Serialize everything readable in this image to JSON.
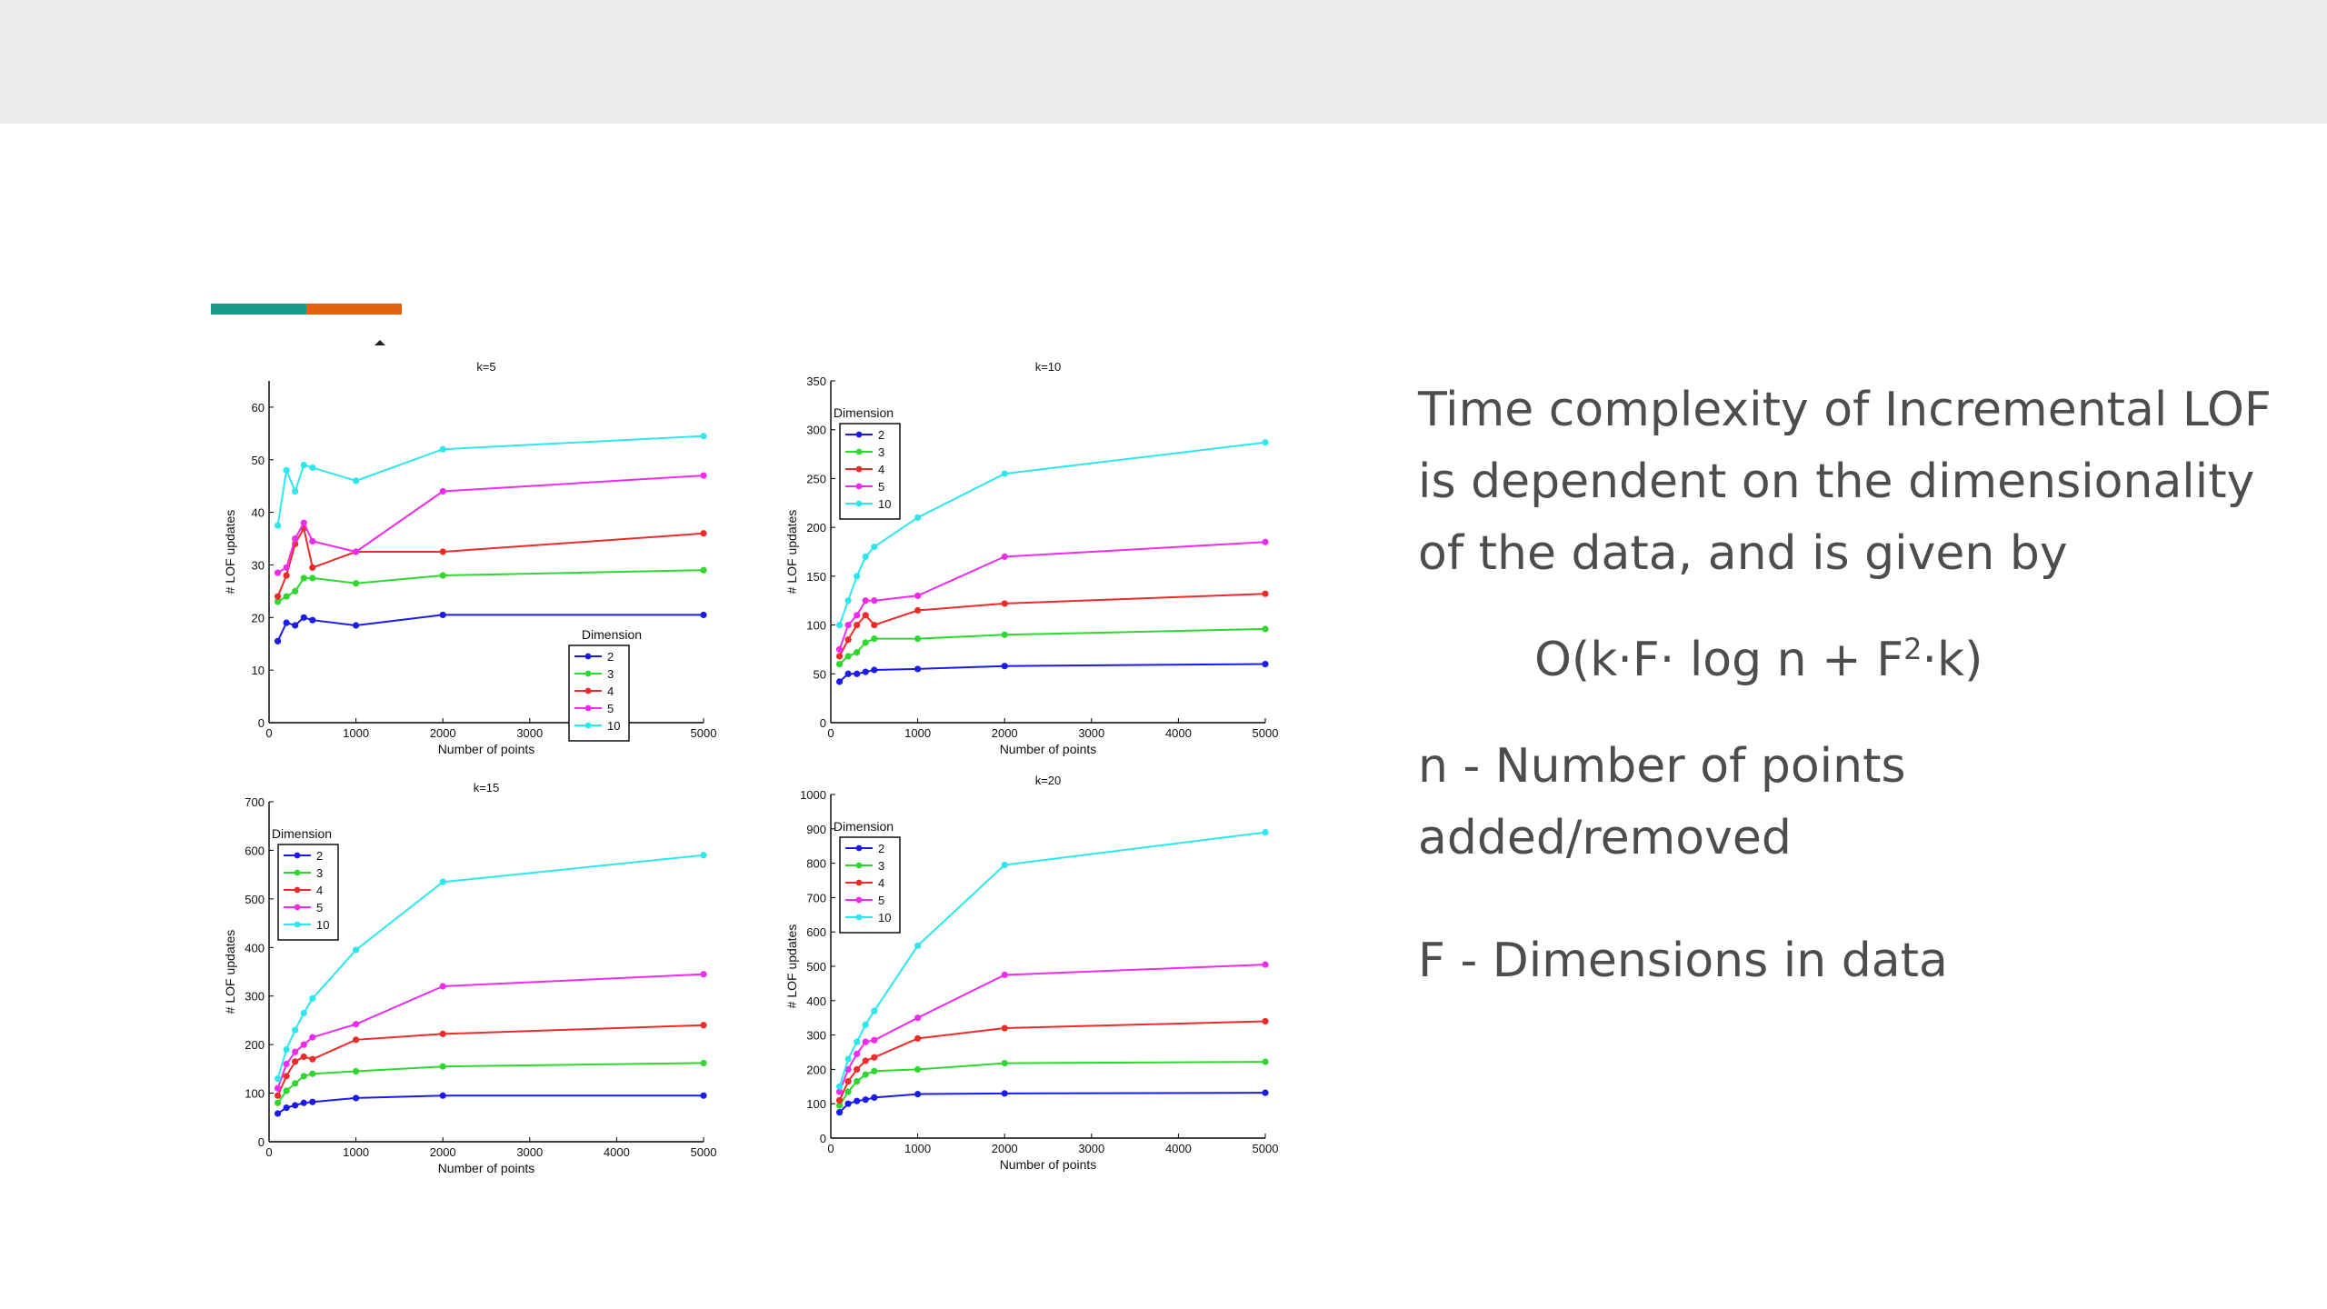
{
  "slide": {
    "accent_colors": [
      "#1a9a8a",
      "#e2600f"
    ],
    "text": {
      "paragraph": "Time complexity of Incremental LOF is dependent on the dimensionality of the data, and is given by",
      "formula_main": "O(k·F· log n + F",
      "formula_sup": "2",
      "formula_tail": "·k)",
      "def_n": "n - Number of points added/removed",
      "def_f": "F - Dimensions in data"
    }
  },
  "series_colors": {
    "2": "#1c1ce8",
    "3": "#2ed82e",
    "4": "#ee2b2b",
    "5": "#ee2bee",
    "10": "#2ce8ee"
  },
  "chart_data": [
    {
      "type": "line",
      "title": "k=5",
      "xlabel": "Number of points",
      "ylabel": "# LOF updates",
      "xlim": [
        0,
        5000
      ],
      "ylim": [
        0,
        65
      ],
      "xticks": [
        0,
        1000,
        2000,
        3000,
        4000,
        5000
      ],
      "yticks": [
        0,
        10,
        20,
        30,
        40,
        50,
        60
      ],
      "legend": {
        "title": "Dimension",
        "position": "lower-right"
      },
      "x": [
        100,
        200,
        300,
        400,
        500,
        1000,
        2000,
        5000
      ],
      "series": [
        {
          "name": "2",
          "values": [
            15.5,
            19,
            18.5,
            20,
            19.5,
            18.5,
            20.5,
            20.5
          ]
        },
        {
          "name": "3",
          "values": [
            23,
            24,
            25,
            27.5,
            27.5,
            26.5,
            28,
            29
          ]
        },
        {
          "name": "4",
          "values": [
            24,
            28,
            34,
            37,
            29.5,
            32.5,
            32.5,
            36
          ]
        },
        {
          "name": "5",
          "values": [
            28.5,
            29.5,
            35,
            38,
            34.5,
            32.5,
            44,
            47
          ]
        },
        {
          "name": "10",
          "values": [
            37.5,
            48,
            44,
            49,
            48.5,
            46,
            52,
            54.5
          ]
        }
      ]
    },
    {
      "type": "line",
      "title": "k=10",
      "xlabel": "Number of points",
      "ylabel": "# LOF updates",
      "xlim": [
        0,
        5000
      ],
      "ylim": [
        0,
        350
      ],
      "xticks": [
        0,
        1000,
        2000,
        3000,
        4000,
        5000
      ],
      "yticks": [
        0,
        50,
        100,
        150,
        200,
        250,
        300,
        350
      ],
      "legend": {
        "title": "Dimension",
        "position": "upper-left"
      },
      "x": [
        100,
        200,
        300,
        400,
        500,
        1000,
        2000,
        5000
      ],
      "series": [
        {
          "name": "2",
          "values": [
            42,
            50,
            50,
            52,
            54,
            55,
            58,
            60
          ]
        },
        {
          "name": "3",
          "values": [
            60,
            68,
            72,
            82,
            86,
            86,
            90,
            96
          ]
        },
        {
          "name": "4",
          "values": [
            68,
            85,
            100,
            110,
            100,
            115,
            122,
            132
          ]
        },
        {
          "name": "5",
          "values": [
            75,
            100,
            110,
            125,
            125,
            130,
            170,
            185
          ]
        },
        {
          "name": "10",
          "values": [
            100,
            125,
            150,
            170,
            180,
            210,
            255,
            287
          ]
        }
      ]
    },
    {
      "type": "line",
      "title": "k=15",
      "xlabel": "Number of points",
      "ylabel": "# LOF updates",
      "xlim": [
        0,
        5000
      ],
      "ylim": [
        0,
        700
      ],
      "xticks": [
        0,
        1000,
        2000,
        3000,
        4000,
        5000
      ],
      "yticks": [
        0,
        100,
        200,
        300,
        400,
        500,
        600,
        700
      ],
      "legend": {
        "title": "Dimension",
        "position": "upper-left"
      },
      "x": [
        100,
        200,
        300,
        400,
        500,
        1000,
        2000,
        5000
      ],
      "series": [
        {
          "name": "2",
          "values": [
            58,
            70,
            75,
            80,
            82,
            90,
            95,
            95
          ]
        },
        {
          "name": "3",
          "values": [
            80,
            105,
            120,
            135,
            140,
            145,
            155,
            162
          ]
        },
        {
          "name": "4",
          "values": [
            95,
            135,
            165,
            175,
            170,
            210,
            222,
            240
          ]
        },
        {
          "name": "5",
          "values": [
            110,
            160,
            185,
            200,
            215,
            242,
            320,
            345
          ]
        },
        {
          "name": "10",
          "values": [
            130,
            190,
            230,
            265,
            295,
            395,
            535,
            590
          ]
        }
      ]
    },
    {
      "type": "line",
      "title": "k=20",
      "xlabel": "Number of points",
      "ylabel": "# LOF updates",
      "xlim": [
        0,
        5000
      ],
      "ylim": [
        0,
        1000
      ],
      "xticks": [
        0,
        1000,
        2000,
        3000,
        4000,
        5000
      ],
      "yticks": [
        0,
        100,
        200,
        300,
        400,
        500,
        600,
        700,
        800,
        900,
        1000
      ],
      "legend": {
        "title": "Dimension",
        "position": "upper-left"
      },
      "x": [
        100,
        200,
        300,
        400,
        500,
        1000,
        2000,
        5000
      ],
      "series": [
        {
          "name": "2",
          "values": [
            75,
            100,
            108,
            112,
            118,
            128,
            130,
            132
          ]
        },
        {
          "name": "3",
          "values": [
            95,
            135,
            165,
            185,
            195,
            200,
            218,
            222
          ]
        },
        {
          "name": "4",
          "values": [
            110,
            165,
            200,
            225,
            235,
            290,
            320,
            340
          ]
        },
        {
          "name": "5",
          "values": [
            135,
            200,
            245,
            280,
            285,
            350,
            475,
            505
          ]
        },
        {
          "name": "10",
          "values": [
            150,
            230,
            280,
            330,
            370,
            560,
            795,
            890
          ]
        }
      ]
    }
  ]
}
